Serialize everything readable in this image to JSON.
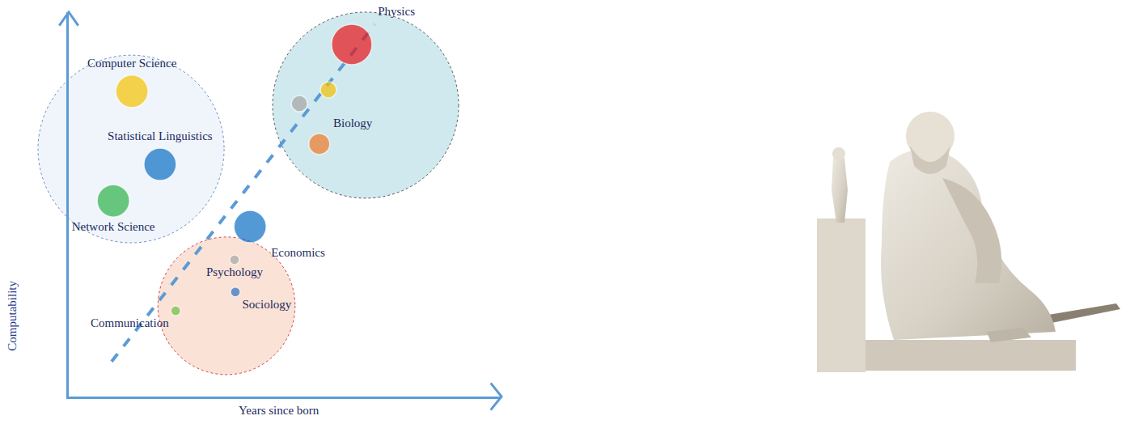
{
  "chart_data": {
    "type": "scatter",
    "x_label": "Years since born",
    "y_label": "Computability",
    "xlim": [
      0,
      10
    ],
    "ylim": [
      0,
      10
    ],
    "xticks": [],
    "yticks": [],
    "tick_labels": false,
    "grid": false,
    "marker": "circle",
    "points": [
      {
        "label": "Physics",
        "x": 6.54,
        "y": 9.16,
        "size": 50,
        "color": "#e8141b"
      },
      {
        "label": null,
        "x": 6.0,
        "y": 7.98,
        "size": 20,
        "color": "#f5c200"
      },
      {
        "label": null,
        "x": 5.33,
        "y": 7.62,
        "size": 20,
        "color": "#a6a6a6"
      },
      {
        "label": "Biology",
        "x": 5.79,
        "y": 6.57,
        "size": 26,
        "color": "#f07a28"
      },
      {
        "label": "Computer Science",
        "x": 1.46,
        "y": 7.94,
        "size": 40,
        "color": "#f5c200"
      },
      {
        "label": "Statistical Linguistics",
        "x": 2.11,
        "y": 6.04,
        "size": 40,
        "color": "#0b6ec4"
      },
      {
        "label": "Network Science",
        "x": 1.03,
        "y": 5.09,
        "size": 40,
        "color": "#2db34a"
      },
      {
        "label": "Economics",
        "x": 4.19,
        "y": 4.42,
        "size": 40,
        "color": "#0b6ec4"
      },
      {
        "label": "Psychology",
        "x": 3.83,
        "y": 3.56,
        "size": 12,
        "color": "#a6a6a6"
      },
      {
        "label": "Sociology",
        "x": 3.85,
        "y": 2.72,
        "size": 12,
        "color": "#2f6fc4"
      },
      {
        "label": "Communication",
        "x": 2.47,
        "y": 2.23,
        "size": 12,
        "color": "#6cbf3f"
      }
    ]
  }
}
